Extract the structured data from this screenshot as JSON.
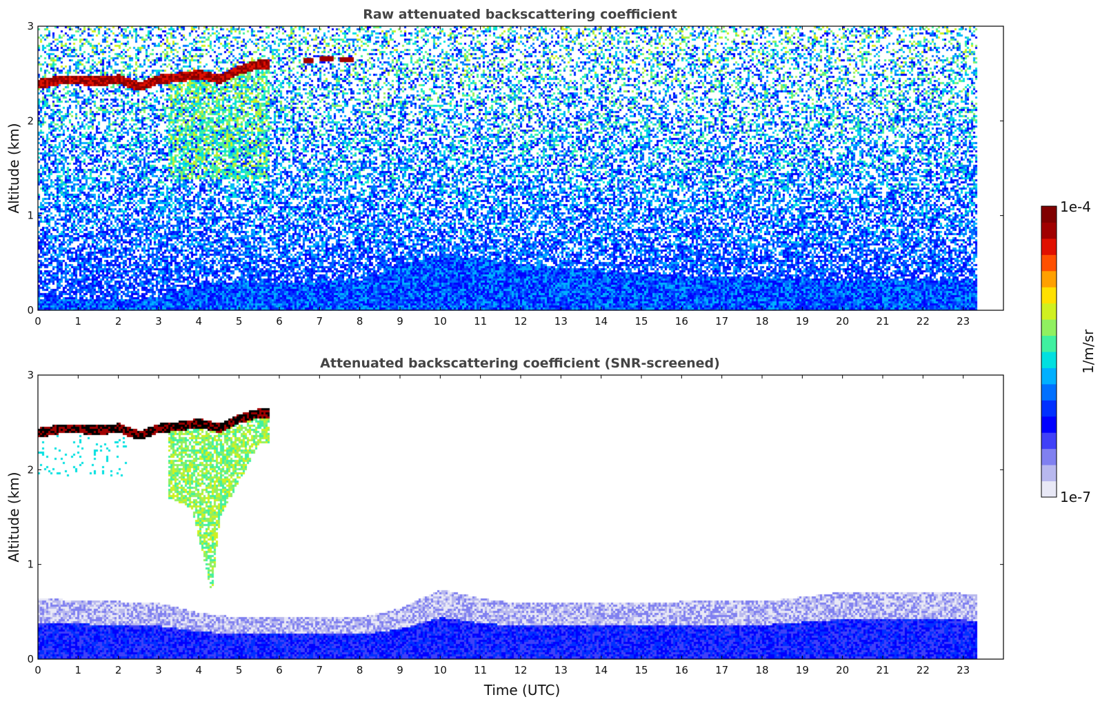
{
  "chart_data": [
    {
      "type": "heatmap",
      "title": "Raw attenuated backscattering coefficient",
      "xlabel": "",
      "ylabel": "Altitude (km)",
      "xlim": [
        0,
        24
      ],
      "ylim": [
        0,
        3
      ],
      "x_ticks": [
        "0",
        "1",
        "2",
        "3",
        "4",
        "5",
        "6",
        "7",
        "8",
        "9",
        "10",
        "11",
        "12",
        "13",
        "14",
        "15",
        "16",
        "17",
        "18",
        "19",
        "20",
        "21",
        "22",
        "23"
      ],
      "y_ticks": [
        "0",
        "1",
        "2",
        "3"
      ],
      "data_extent_hours": [
        0,
        23.3
      ],
      "features": {
        "cloud_layer": {
          "x": [
            0,
            0.5,
            1.0,
            1.5,
            2.0,
            2.5,
            3.0,
            3.5,
            4.0,
            4.5,
            5.0,
            5.5,
            5.7
          ],
          "top_km": [
            2.45,
            2.49,
            2.49,
            2.48,
            2.5,
            2.42,
            2.5,
            2.52,
            2.55,
            2.5,
            2.6,
            2.66,
            2.66
          ]
        },
        "cloud_fragments": [
          {
            "x0": 6.6,
            "x1": 6.8,
            "alt_km": 2.64
          },
          {
            "x0": 7.0,
            "x1": 7.3,
            "alt_km": 2.66
          },
          {
            "x0": 7.5,
            "x1": 7.8,
            "alt_km": 2.65
          }
        ],
        "boundary_layer_top_km": {
          "x": [
            0,
            2,
            3,
            4,
            5,
            6,
            8,
            9,
            10,
            11,
            12,
            14,
            16,
            18,
            20,
            22,
            23.3
          ],
          "y": [
            0.12,
            0.12,
            0.15,
            0.28,
            0.32,
            0.3,
            0.32,
            0.5,
            0.6,
            0.55,
            0.5,
            0.42,
            0.38,
            0.35,
            0.33,
            0.33,
            0.33
          ]
        }
      }
    },
    {
      "type": "heatmap",
      "title": "Attenuated backscattering coefficient (SNR-screened)",
      "xlabel": "Time (UTC)",
      "ylabel": "Altitude (km)",
      "xlim": [
        0,
        24
      ],
      "ylim": [
        0,
        3
      ],
      "x_ticks": [
        "0",
        "1",
        "2",
        "3",
        "4",
        "5",
        "6",
        "7",
        "8",
        "9",
        "10",
        "11",
        "12",
        "13",
        "14",
        "15",
        "16",
        "17",
        "18",
        "19",
        "20",
        "21",
        "22",
        "23"
      ],
      "y_ticks": [
        "0",
        "1",
        "2",
        "3"
      ],
      "data_extent_hours": [
        0,
        23.3
      ],
      "features": {
        "cloud_layer": {
          "x": [
            0,
            0.5,
            1.0,
            1.5,
            2.0,
            2.5,
            3.0,
            3.5,
            4.0,
            4.5,
            5.0,
            5.5,
            5.7
          ],
          "top_km": [
            2.45,
            2.49,
            2.49,
            2.48,
            2.5,
            2.42,
            2.5,
            2.52,
            2.55,
            2.5,
            2.6,
            2.66,
            2.66
          ]
        },
        "virga_fall_km": {
          "x": [
            3.3,
            3.8,
            4.3,
            4.5,
            5.0,
            5.5
          ],
          "bottom_km": [
            1.7,
            1.6,
            0.7,
            1.5,
            1.9,
            2.3
          ]
        },
        "boundary_layer_top_km": {
          "x": [
            0,
            2,
            3,
            4,
            5,
            6,
            8,
            9,
            10,
            11,
            12,
            14,
            16,
            18,
            20,
            22,
            23.3
          ],
          "y": [
            0.65,
            0.62,
            0.6,
            0.5,
            0.45,
            0.45,
            0.45,
            0.55,
            0.75,
            0.65,
            0.6,
            0.6,
            0.62,
            0.62,
            0.72,
            0.72,
            0.7
          ]
        }
      }
    }
  ],
  "colorbar": {
    "label": "1/m/sr",
    "max_label": "1e-4",
    "min_label": "1e-7",
    "scale": "log",
    "range": [
      1e-07,
      0.0001
    ],
    "colors": [
      "#e8e8f6",
      "#b8b8ee",
      "#8080f0",
      "#4040f8",
      "#0000ff",
      "#0030ff",
      "#0070ff",
      "#00b0ff",
      "#00e0e0",
      "#40f0a0",
      "#90f060",
      "#d0f020",
      "#ffe000",
      "#ffa000",
      "#ff5000",
      "#e01000",
      "#a00000",
      "#800000"
    ],
    "clipped_color": "#000000"
  }
}
